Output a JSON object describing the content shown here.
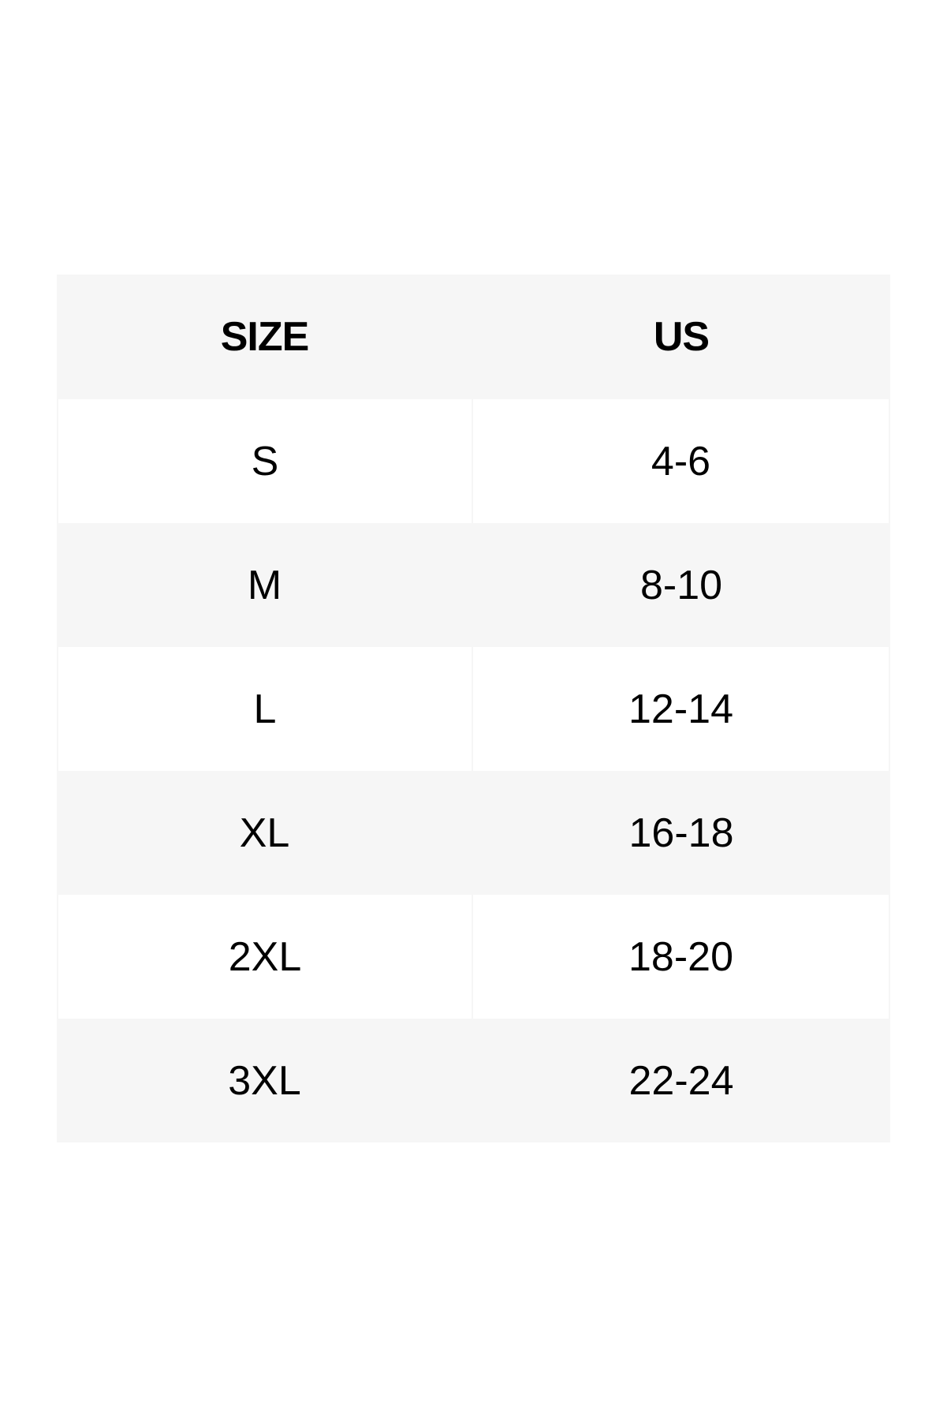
{
  "size_chart": {
    "headers": [
      "SIZE",
      "US"
    ],
    "rows": [
      [
        "S",
        "4-6"
      ],
      [
        "M",
        "8-10"
      ],
      [
        "L",
        "12-14"
      ],
      [
        "XL",
        "16-18"
      ],
      [
        "2XL",
        "18-20"
      ],
      [
        "3XL",
        "22-24"
      ]
    ]
  },
  "colors": {
    "header_bg": "#f6f6f6",
    "striped_row_bg": "#f6f6f6",
    "row_bg": "#ffffff",
    "text": "#000000"
  }
}
